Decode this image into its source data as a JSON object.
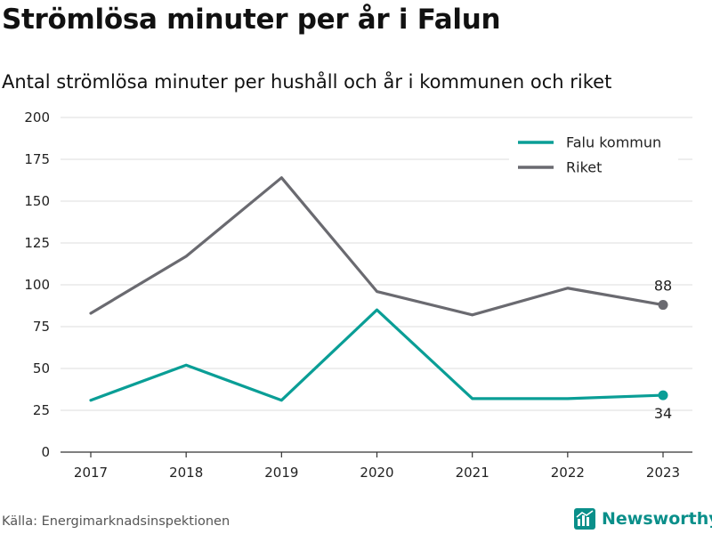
{
  "header": {
    "title": "Strömlösa minuter per år i Falun",
    "subtitle": "Antal strömlösa minuter per hushåll och år i kommunen och riket"
  },
  "footer": {
    "source": "Källa: Energimarknadsinspektionen",
    "brand": "Newsworthy",
    "brand_icon": "newsworthy-logo-icon"
  },
  "colors": {
    "falu": "#0a9e96",
    "riket": "#6a6a70",
    "grid": "#dddddd",
    "axis": "#333333"
  },
  "chart_data": {
    "type": "line",
    "x": [
      "2017",
      "2018",
      "2019",
      "2020",
      "2021",
      "2022",
      "2023"
    ],
    "series": [
      {
        "name": "Falu kommun",
        "values": [
          31,
          52,
          31,
          85,
          32,
          32,
          34
        ],
        "color": "#0a9e96",
        "end_label": "34"
      },
      {
        "name": "Riket",
        "values": [
          83,
          117,
          164,
          96,
          82,
          98,
          88
        ],
        "color": "#6a6a70",
        "end_label": "88"
      }
    ],
    "yticks": [
      "0",
      "25",
      "50",
      "75",
      "100",
      "125",
      "150",
      "175",
      "200"
    ],
    "ylim": [
      0,
      200
    ],
    "grid": true,
    "legend": "top-right"
  }
}
